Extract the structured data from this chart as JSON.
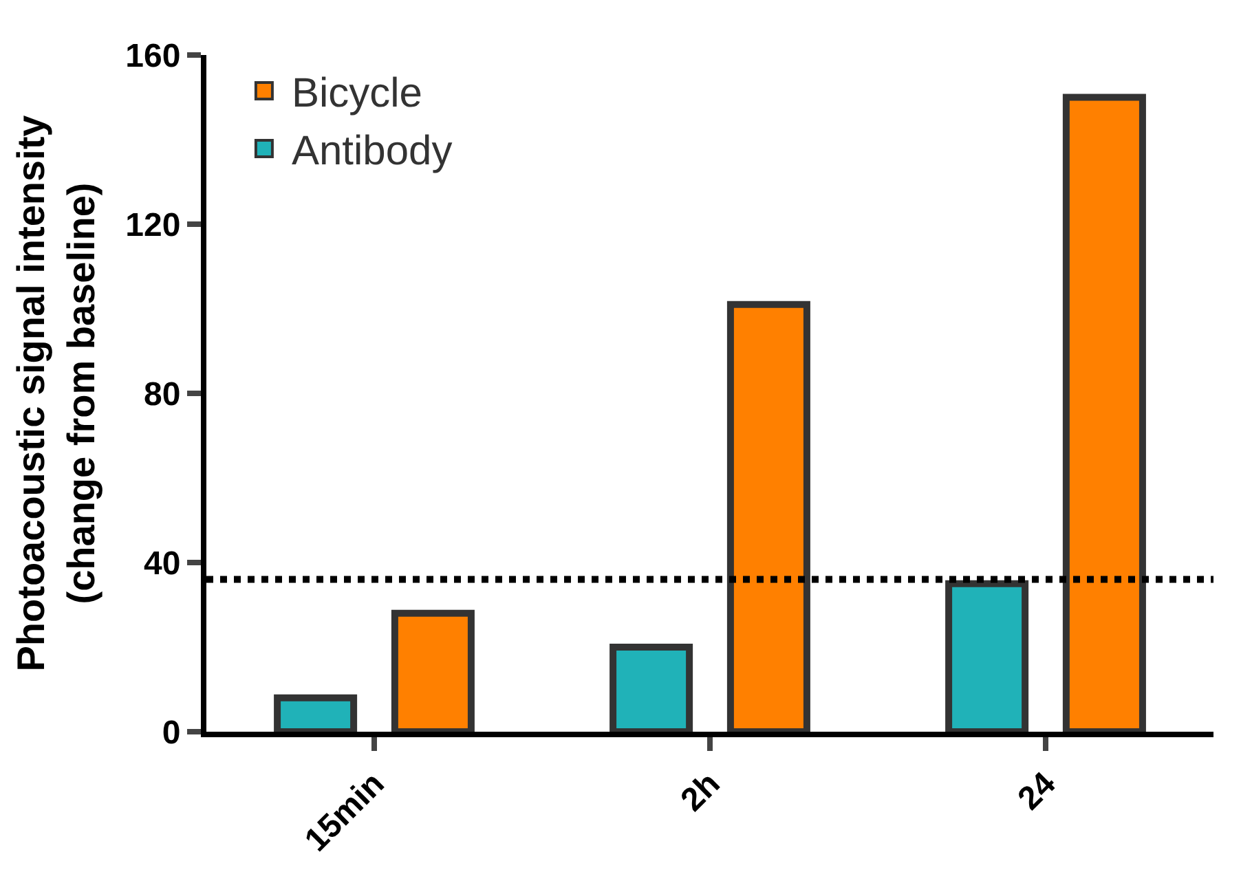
{
  "chart_data": {
    "type": "bar",
    "ylabel": "Photoacoustic signal intensity\n(change from baseline)",
    "categories": [
      "15min",
      "2h",
      "24"
    ],
    "series": [
      {
        "name": "Antibody",
        "color": "#20b2b8",
        "values": [
          8,
          20,
          35
        ]
      },
      {
        "name": "Bicycle",
        "color": "#ff8000",
        "values": [
          28,
          101,
          150
        ]
      }
    ],
    "ylim": [
      0,
      160
    ],
    "yticks": [
      0,
      40,
      80,
      120,
      160
    ],
    "ref_lines": [
      {
        "axis": "y",
        "value": 36,
        "line_style": "dotted",
        "color": "#000000"
      }
    ],
    "legend": "top left"
  }
}
